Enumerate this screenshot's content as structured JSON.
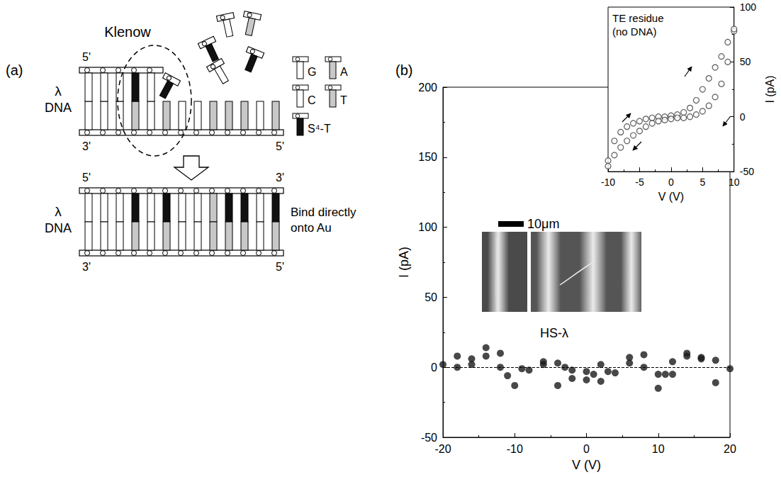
{
  "diagram": {
    "label": "(a)",
    "enzyme": "Klenow",
    "before": {
      "name": "λ DNA",
      "ends": {
        "top_left": "5'",
        "bottom_left": "3'",
        "bottom_right": "5'"
      }
    },
    "after": {
      "name": "λ DNA",
      "ends": {
        "top_left": "5'",
        "top_right": "3'",
        "bottom_left": "3'",
        "bottom_right": "5'"
      },
      "note": "Bind directly onto Au"
    },
    "nucleotides": [
      {
        "label": "G",
        "fill": "#ffffff"
      },
      {
        "label": "A",
        "fill": "#c8c8c8"
      },
      {
        "label": "C",
        "fill": "#ffffff"
      },
      {
        "label": "T",
        "fill": "#c8c8c8"
      },
      {
        "label": "S⁴-T",
        "fill": "#111111"
      }
    ]
  },
  "chart_data": [
    {
      "panel_label": "(b)",
      "type": "scatter",
      "x_label": "V (V)",
      "y_label": "I (pA)",
      "x": [
        -20,
        -18,
        -18,
        -16,
        -16,
        -14,
        -14,
        -12,
        -12,
        -11,
        -10,
        -9,
        -8,
        -6,
        -6,
        -4,
        -4,
        -3,
        -2,
        -2,
        0,
        0,
        1,
        2,
        2,
        3,
        4,
        6,
        6,
        8,
        8,
        10,
        10,
        11,
        12,
        12,
        14,
        14,
        16,
        16,
        18,
        18,
        20
      ],
      "values": [
        2,
        8,
        0,
        6,
        2,
        14,
        8,
        10,
        0,
        -6,
        -13,
        -1,
        -2,
        4,
        2,
        3,
        -13,
        0,
        -2,
        -8,
        -3,
        -9,
        -5,
        2,
        -10,
        -3,
        -4,
        7,
        3,
        9,
        0,
        -5,
        -15,
        -5,
        4,
        -5,
        10,
        8,
        7,
        6,
        5,
        -11,
        -1
      ],
      "color": "#1a1a1a",
      "marker": "filled circle",
      "xlim": [
        -20,
        20
      ],
      "xticks": [
        -20,
        -10,
        0,
        10,
        20
      ],
      "ylim": [
        -50,
        200
      ],
      "yticks": [
        -50,
        0,
        50,
        100,
        150,
        200
      ],
      "grid": false,
      "reference_lines": [
        {
          "y": 0,
          "line_style": "dashed"
        }
      ],
      "annotations": [
        "HS-λ"
      ],
      "scale_bar": "10μm"
    },
    {
      "type": "scatter",
      "annotation": "TE residue (no DNA)",
      "x_label": "V (V)",
      "y_label": "I (pA)",
      "x": [
        -10,
        -9,
        -8,
        -7,
        -6,
        -5,
        -4,
        -3,
        -2,
        -1,
        0,
        1,
        2,
        3,
        4,
        5,
        6,
        7,
        8,
        9,
        10,
        10,
        9,
        8,
        7,
        6,
        5,
        4,
        3,
        2,
        1,
        0,
        -1,
        -2,
        -3,
        -4,
        -5,
        -6,
        -7,
        -8,
        -9,
        -10
      ],
      "values": [
        -40,
        -22,
        -14,
        -9,
        -6,
        -4,
        -2,
        -1,
        0,
        0,
        1,
        2,
        4,
        8,
        15,
        25,
        35,
        45,
        55,
        68,
        78,
        80,
        50,
        30,
        18,
        10,
        5,
        2,
        0,
        -1,
        -1,
        -2,
        -3,
        -4,
        -6,
        -9,
        -13,
        -17,
        -22,
        -28,
        -35,
        -45
      ],
      "color": "#333333",
      "marker": "open circle",
      "xlim": [
        -10,
        10
      ],
      "xticks": [
        -10,
        -5,
        0,
        5,
        10
      ],
      "ylim": [
        -50,
        100
      ],
      "yticks": [
        -50,
        0,
        50,
        100
      ],
      "grid": false
    }
  ]
}
